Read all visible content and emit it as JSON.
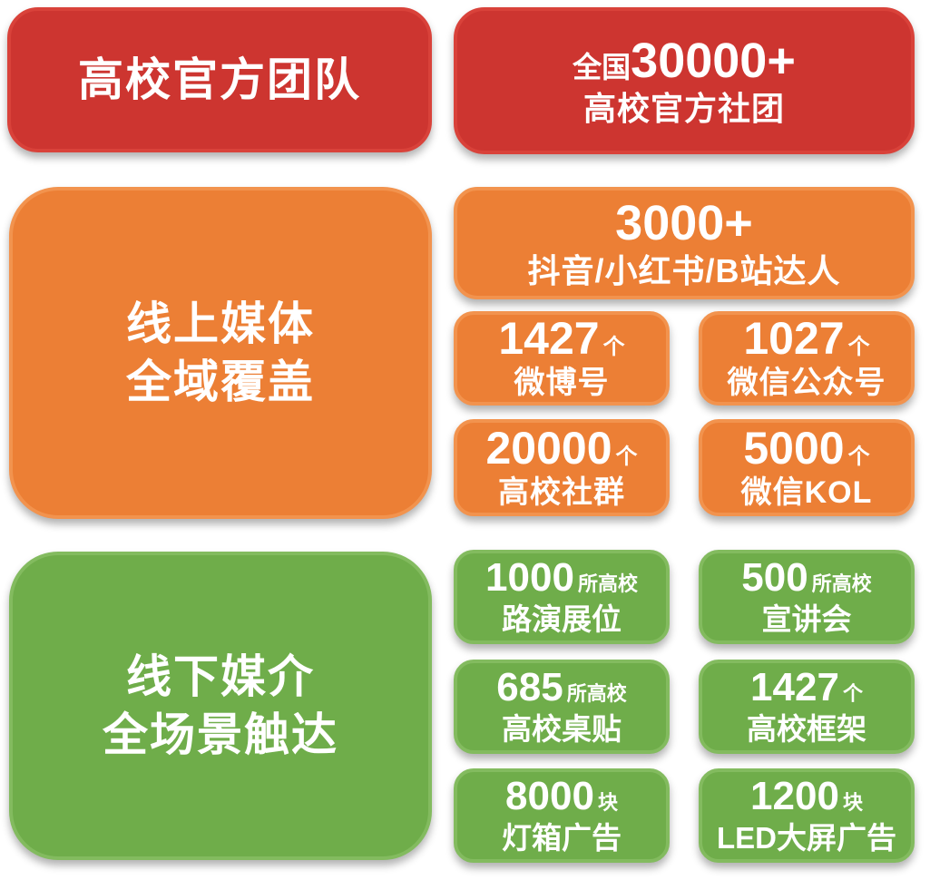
{
  "colors": {
    "bg": "#ffffff",
    "text": "#ffffff",
    "red": "#cd3530",
    "red_border": "#d9423a",
    "orange": "#ec7f35",
    "orange_border": "#f2934e",
    "green": "#6fad4a",
    "green_border": "#83bb5f"
  },
  "official": {
    "title": "高校官方团队",
    "stat": {
      "prefix": "全国",
      "number": "30000+",
      "label": "高校官方社团"
    }
  },
  "online": {
    "title_line1": "线上媒体",
    "title_line2": "全域覆盖",
    "feature": {
      "number": "3000+",
      "label": "抖音/小红书/B站达人"
    },
    "stats": [
      {
        "number": "1427",
        "unit": "个",
        "label": "微博号"
      },
      {
        "number": "1027",
        "unit": "个",
        "label": "微信公众号"
      },
      {
        "number": "20000",
        "unit": "个",
        "label": "高校社群"
      },
      {
        "number": "5000",
        "unit": "个",
        "label": "微信KOL"
      }
    ]
  },
  "offline": {
    "title_line1": "线下媒介",
    "title_line2": "全场景触达",
    "stats": [
      {
        "number": "1000",
        "unit": "所高校",
        "label": "路演展位"
      },
      {
        "number": "500",
        "unit": "所高校",
        "label": "宣讲会"
      },
      {
        "number": "685",
        "unit": "所高校",
        "label": "高校桌贴"
      },
      {
        "number": "1427",
        "unit": "个",
        "label": "高校框架"
      },
      {
        "number": "8000",
        "unit": "块",
        "label": "灯箱广告"
      },
      {
        "number": "1200",
        "unit": "块",
        "label": "LED大屏广告"
      }
    ]
  }
}
